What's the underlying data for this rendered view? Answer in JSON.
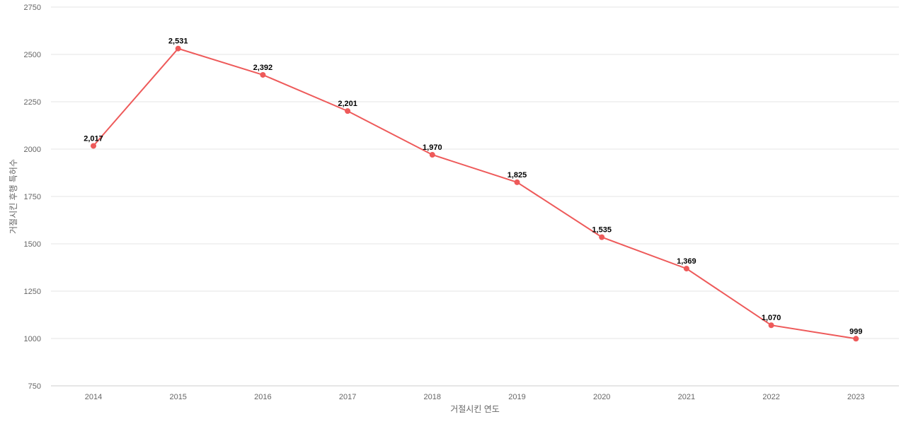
{
  "chart_data": {
    "type": "line",
    "title": "",
    "xlabel": "거절시킨 연도",
    "ylabel": "거절시킨 후행 특허수",
    "categories": [
      "2014",
      "2015",
      "2016",
      "2017",
      "2018",
      "2019",
      "2020",
      "2021",
      "2022",
      "2023"
    ],
    "series": [
      {
        "name": "",
        "values": [
          2017,
          2531,
          2392,
          2201,
          1970,
          1825,
          1535,
          1369,
          1070,
          999
        ],
        "labels": [
          "2,017",
          "2,531",
          "2,392",
          "2,201",
          "1,970",
          "1,825",
          "1,535",
          "1,369",
          "1,070",
          "999"
        ]
      }
    ],
    "ylim": [
      750,
      2750
    ],
    "yticks": [
      "750",
      "1000",
      "1250",
      "1500",
      "1750",
      "2000",
      "2250",
      "2500",
      "2750"
    ],
    "grid": true,
    "legend": "none",
    "colors": {
      "line": "#ee5a5a",
      "grid": "#e6e6e6",
      "axis_text": "#666666",
      "label_text": "#000000"
    }
  }
}
